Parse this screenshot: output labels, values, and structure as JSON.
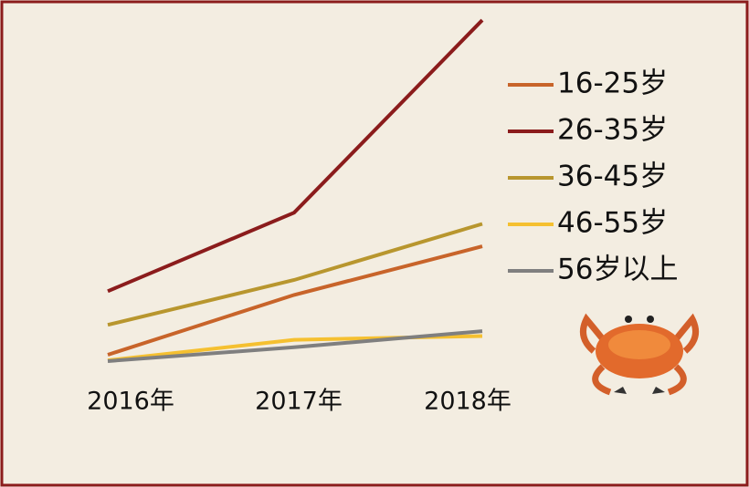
{
  "chart_data": {
    "type": "line",
    "categories": [
      "2016年",
      "2017年",
      "2018年"
    ],
    "ylim": [
      0,
      100
    ],
    "series": [
      {
        "name": "16-25岁",
        "color": "#c8642a",
        "values": [
          10,
          26,
          39
        ]
      },
      {
        "name": "26-35岁",
        "color": "#8b1c1c",
        "values": [
          27,
          48,
          99.5
        ]
      },
      {
        "name": "36-45岁",
        "color": "#b8962e",
        "values": [
          18,
          30,
          45
        ]
      },
      {
        "name": "46-55岁",
        "color": "#f5c030",
        "values": [
          8.5,
          14,
          15
        ]
      },
      {
        "name": "56岁以上",
        "color": "#7f7f7f",
        "values": [
          8.3,
          12,
          16.3
        ]
      }
    ]
  }
}
